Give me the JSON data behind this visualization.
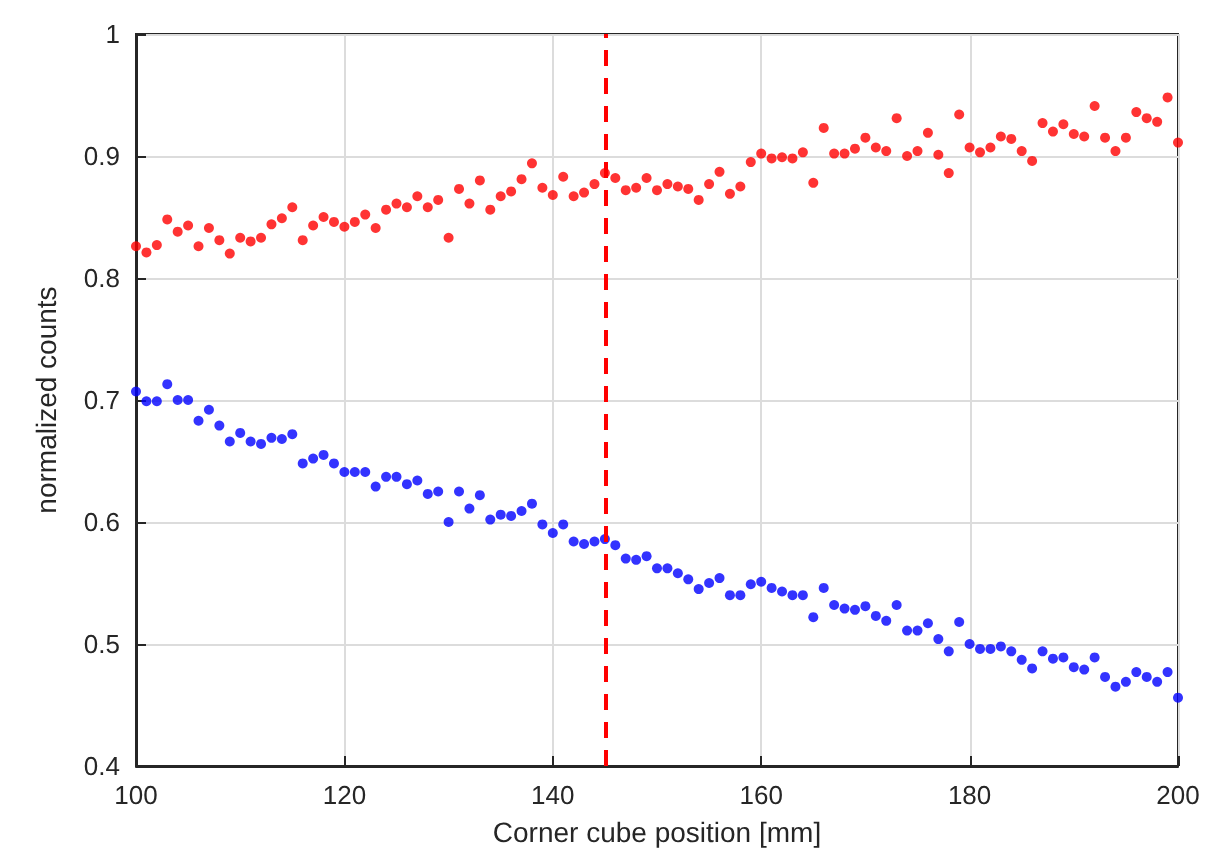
{
  "chart_data": {
    "type": "scatter",
    "xlabel": "Corner cube position [mm]",
    "ylabel": "normalized counts",
    "x": [
      100,
      101,
      102,
      103,
      104,
      105,
      106,
      107,
      108,
      109,
      110,
      111,
      112,
      113,
      114,
      115,
      116,
      117,
      118,
      119,
      120,
      121,
      122,
      123,
      124,
      125,
      126,
      127,
      128,
      129,
      130,
      131,
      132,
      133,
      134,
      135,
      136,
      137,
      138,
      139,
      140,
      141,
      142,
      143,
      144,
      145,
      146,
      147,
      148,
      149,
      150,
      151,
      152,
      153,
      154,
      155,
      156,
      157,
      158,
      159,
      160,
      161,
      162,
      163,
      164,
      165,
      166,
      167,
      168,
      169,
      170,
      171,
      172,
      173,
      174,
      175,
      176,
      177,
      178,
      179,
      180,
      181,
      182,
      183,
      184,
      185,
      186,
      187,
      188,
      189,
      190,
      191,
      192,
      193,
      194,
      195,
      196,
      197,
      198,
      199,
      200
    ],
    "series": [
      {
        "color": "#ff0000",
        "values": [
          0.826,
          0.821,
          0.827,
          0.848,
          0.838,
          0.843,
          0.826,
          0.841,
          0.831,
          0.82,
          0.833,
          0.83,
          0.833,
          0.844,
          0.849,
          0.858,
          0.831,
          0.843,
          0.85,
          0.846,
          0.842,
          0.846,
          0.852,
          0.841,
          0.856,
          0.861,
          0.858,
          0.867,
          0.858,
          0.864,
          0.833,
          0.873,
          0.861,
          0.88,
          0.856,
          0.867,
          0.871,
          0.881,
          0.894,
          0.874,
          0.868,
          0.883,
          0.867,
          0.87,
          0.877,
          0.886,
          0.882,
          0.872,
          0.874,
          0.882,
          0.872,
          0.877,
          0.875,
          0.873,
          0.864,
          0.877,
          0.887,
          0.869,
          0.875,
          0.895,
          0.902,
          0.898,
          0.899,
          0.898,
          0.903,
          0.878,
          0.923,
          0.902,
          0.902,
          0.906,
          0.915,
          0.907,
          0.904,
          0.931,
          0.9,
          0.904,
          0.919,
          0.901,
          0.886,
          0.934,
          0.907,
          0.903,
          0.907,
          0.916,
          0.914,
          0.904,
          0.896,
          0.927,
          0.92,
          0.926,
          0.918,
          0.916,
          0.941,
          0.915,
          0.904,
          0.915,
          0.936,
          0.931,
          0.928,
          0.948,
          0.911
        ]
      },
      {
        "color": "#0000ff",
        "values": [
          0.707,
          0.699,
          0.699,
          0.713,
          0.7,
          0.7,
          0.683,
          0.692,
          0.679,
          0.666,
          0.673,
          0.666,
          0.664,
          0.669,
          0.668,
          0.672,
          0.648,
          0.652,
          0.655,
          0.648,
          0.641,
          0.641,
          0.641,
          0.629,
          0.637,
          0.637,
          0.631,
          0.634,
          0.623,
          0.625,
          0.6,
          0.625,
          0.611,
          0.622,
          0.602,
          0.606,
          0.605,
          0.609,
          0.615,
          0.598,
          0.591,
          0.598,
          0.584,
          0.582,
          0.584,
          0.586,
          0.581,
          0.57,
          0.569,
          0.572,
          0.562,
          0.562,
          0.558,
          0.553,
          0.545,
          0.55,
          0.554,
          0.54,
          0.54,
          0.549,
          0.551,
          0.546,
          0.543,
          0.54,
          0.54,
          0.522,
          0.546,
          0.532,
          0.529,
          0.528,
          0.531,
          0.523,
          0.519,
          0.532,
          0.511,
          0.511,
          0.517,
          0.504,
          0.494,
          0.518,
          0.5,
          0.496,
          0.496,
          0.498,
          0.494,
          0.487,
          0.48,
          0.494,
          0.488,
          0.489,
          0.481,
          0.479,
          0.489,
          0.473,
          0.465,
          0.469,
          0.477,
          0.473,
          0.469,
          0.477,
          0.456
        ]
      }
    ],
    "xlim": [
      100,
      200
    ],
    "xticks": [
      100,
      120,
      140,
      160,
      180,
      200
    ],
    "ylim": [
      0.4,
      1
    ],
    "yticks": [
      0.4,
      0.5,
      0.6,
      0.7,
      0.8,
      0.9,
      1
    ],
    "grid": true,
    "marker": "circle",
    "ref_lines": [
      {
        "axis": "x",
        "value": 145,
        "color": "#ff0000",
        "line_style": "dashed"
      }
    ]
  }
}
